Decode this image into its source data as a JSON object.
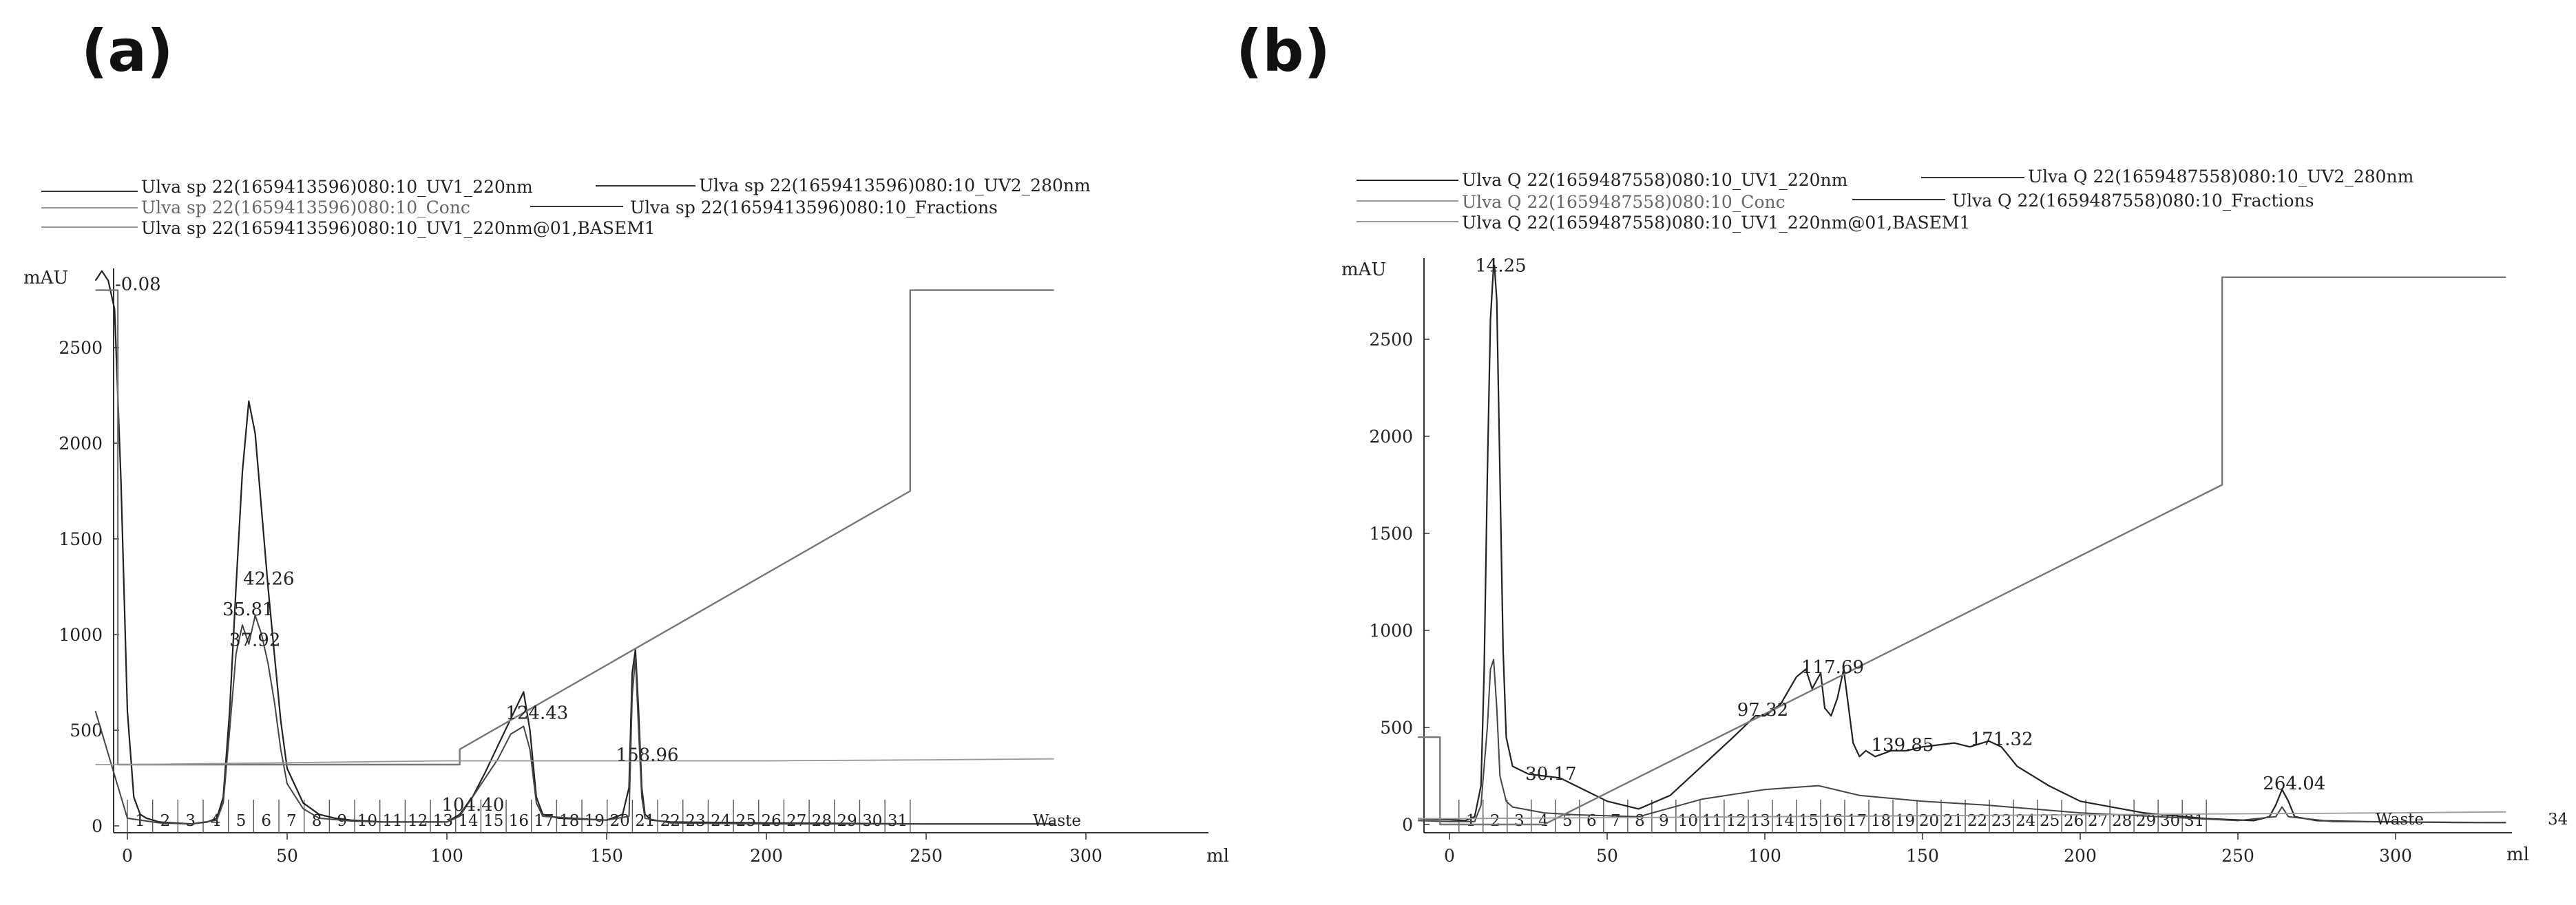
{
  "panels": [
    {
      "label": "(a)",
      "legend": [
        "Ulva sp 22(1659413596)080:10_UV1_220nm",
        "Ulva sp 22(1659413596)080:10_UV2_280nm",
        "Ulva sp 22(1659413596)080:10_Conc",
        "Ulva sp 22(1659413596)080:10_Fractions",
        "Ulva sp 22(1659413596)080:10_UV1_220nm@01,BASEM1"
      ],
      "ylabel": "mAU",
      "xlabel": "ml",
      "waste_label": "Waste",
      "right_edge_label": "",
      "fractions": [
        "1",
        "2",
        "3",
        "4",
        "5",
        "6",
        "7",
        "8",
        "9",
        "10",
        "11",
        "12",
        "13",
        "14",
        "15",
        "16",
        "17",
        "18",
        "19",
        "20",
        "21",
        "22",
        "23",
        "24",
        "25",
        "26",
        "27",
        "28",
        "29",
        "30",
        "31"
      ],
      "peak_labels": [
        {
          "text": "-0.08",
          "x": -0.08,
          "y": 2800
        },
        {
          "text": "42.26",
          "x": 42.26,
          "y": 1260
        },
        {
          "text": "35.81",
          "x": 35.81,
          "y": 1100
        },
        {
          "text": "37.92",
          "x": 37.92,
          "y": 940
        },
        {
          "text": "104.40",
          "x": 104.4,
          "y": 80
        },
        {
          "text": "124.43",
          "x": 124.43,
          "y": 560
        },
        {
          "text": "158.96",
          "x": 158.96,
          "y": 340
        }
      ]
    },
    {
      "label": "(b)",
      "legend": [
        "Ulva Q 22(1659487558)080:10_UV1_220nm",
        "Ulva Q 22(1659487558)080:10_UV2_280nm",
        "Ulva Q 22(1659487558)080:10_Conc",
        "Ulva Q 22(1659487558)080:10_Fractions",
        "Ulva Q 22(1659487558)080:10_UV1_220nm@01,BASEM1"
      ],
      "ylabel": "mAU",
      "xlabel": "ml",
      "waste_label": "Waste",
      "right_edge_label": "34",
      "fractions": [
        "1",
        "2",
        "3",
        "4",
        "5",
        "6",
        "7",
        "8",
        "9",
        "10",
        "11",
        "12",
        "13",
        "14",
        "15",
        "16",
        "17",
        "18",
        "19",
        "20",
        "21",
        "22",
        "23",
        "24",
        "25",
        "26",
        "27",
        "28",
        "29",
        "30",
        "31"
      ],
      "peak_labels": [
        {
          "text": "14.25",
          "x": 14.25,
          "y": 2850
        },
        {
          "text": "30.17",
          "x": 30.17,
          "y": 230
        },
        {
          "text": "97.32",
          "x": 97.32,
          "y": 560
        },
        {
          "text": "117.69",
          "x": 117.69,
          "y": 780
        },
        {
          "text": "139.85",
          "x": 139.85,
          "y": 380
        },
        {
          "text": "171.32",
          "x": 171.32,
          "y": 410
        },
        {
          "text": "264.04",
          "x": 264.04,
          "y": 180
        }
      ]
    }
  ],
  "chart_data": [
    {
      "type": "line",
      "title": "",
      "xlabel": "ml",
      "ylabel": "mAU",
      "xlim": [
        -10,
        290
      ],
      "ylim": [
        0,
        2900
      ],
      "xticks": [
        0,
        50,
        100,
        150,
        200,
        250,
        300
      ],
      "yticks": [
        0,
        500,
        1000,
        1500,
        2000,
        2500
      ],
      "grid": false,
      "legend_position": "top",
      "series": [
        {
          "name": "Ulva sp 22(1659413596)080:10_UV1_220nm",
          "x": [
            -10,
            -8,
            -6,
            -4,
            -2,
            0,
            2,
            4,
            6,
            8,
            10,
            15,
            20,
            25,
            28,
            30,
            32,
            34,
            36,
            38,
            40,
            42,
            44,
            46,
            48,
            50,
            55,
            60,
            65,
            70,
            80,
            90,
            100,
            104,
            108,
            112,
            116,
            120,
            124,
            126,
            128,
            130,
            135,
            150,
            155,
            157,
            158,
            159,
            160,
            161,
            162,
            164,
            170,
            200,
            250,
            290
          ],
          "y": [
            2850,
            2900,
            2850,
            2700,
            1800,
            600,
            150,
            60,
            40,
            30,
            20,
            15,
            10,
            20,
            40,
            150,
            600,
            1250,
            1850,
            2220,
            2050,
            1650,
            1250,
            900,
            550,
            300,
            120,
            60,
            40,
            30,
            20,
            20,
            20,
            60,
            150,
            280,
            420,
            560,
            700,
            500,
            150,
            60,
            40,
            30,
            60,
            200,
            800,
            920,
            600,
            200,
            60,
            30,
            20,
            15,
            10,
            10
          ]
        },
        {
          "name": "Ulva sp 22(1659413596)080:10_UV2_280nm",
          "x": [
            -10,
            0,
            10,
            20,
            28,
            30,
            32,
            34,
            36,
            38,
            40,
            42,
            44,
            46,
            48,
            50,
            55,
            60,
            70,
            80,
            100,
            104,
            110,
            116,
            120,
            124,
            126,
            128,
            130,
            150,
            157,
            158,
            159,
            160,
            161,
            162,
            170,
            200,
            250,
            290
          ],
          "y": [
            600,
            40,
            15,
            10,
            30,
            120,
            500,
            900,
            1050,
            950,
            1100,
            1000,
            850,
            650,
            400,
            220,
            90,
            40,
            25,
            20,
            20,
            50,
            200,
            350,
            480,
            520,
            400,
            120,
            50,
            30,
            50,
            680,
            880,
            500,
            150,
            40,
            15,
            10,
            10,
            10
          ]
        },
        {
          "name": "Ulva sp 22(1659413596)080:10_Conc",
          "x": [
            -10,
            -3,
            -3,
            0,
            50,
            104,
            104,
            245,
            245,
            290
          ],
          "y": [
            2800,
            2800,
            320,
            320,
            320,
            320,
            400,
            1750,
            2800,
            2800
          ]
        },
        {
          "name": "Ulva sp 22(1659413596)080:10_UV1_220nm@01,BASEM1",
          "x": [
            -10,
            0,
            50,
            100,
            150,
            200,
            250,
            290
          ],
          "y": [
            320,
            320,
            330,
            340,
            340,
            340,
            345,
            350
          ]
        }
      ],
      "fractions": [
        "1",
        "2",
        "3",
        "4",
        "5",
        "6",
        "7",
        "8",
        "9",
        "10",
        "11",
        "12",
        "13",
        "14",
        "15",
        "16",
        "17",
        "18",
        "19",
        "20",
        "21",
        "22",
        "23",
        "24",
        "25",
        "26",
        "27",
        "28",
        "29",
        "30",
        "31"
      ],
      "fraction_range_ml": [
        0,
        245
      ],
      "annotations": [
        "-0.08",
        "42.26",
        "35.81",
        "37.92",
        "104.40",
        "124.43",
        "158.96",
        "Waste"
      ]
    },
    {
      "type": "line",
      "title": "",
      "xlabel": "ml",
      "ylabel": "mAU",
      "xlim": [
        -10,
        335
      ],
      "ylim": [
        0,
        2900
      ],
      "xticks": [
        0,
        50,
        100,
        150,
        200,
        250,
        300
      ],
      "yticks": [
        0,
        500,
        1000,
        1500,
        2000,
        2500
      ],
      "grid": false,
      "legend_position": "top",
      "series": [
        {
          "name": "Ulva Q 22(1659487558)080:10_UV1_220nm",
          "x": [
            -10,
            0,
            5,
            8,
            10,
            11,
            12,
            13,
            14,
            14.25,
            15,
            16,
            17,
            18,
            20,
            25,
            30,
            35,
            40,
            50,
            60,
            70,
            80,
            90,
            97,
            100,
            105,
            110,
            113,
            115,
            117.7,
            119,
            121,
            123,
            125,
            128,
            130,
            132,
            135,
            140,
            145,
            150,
            160,
            165,
            171,
            175,
            180,
            190,
            200,
            220,
            240,
            255,
            260,
            262,
            264,
            266,
            268,
            275,
            290,
            320,
            335
          ],
          "y": [
            30,
            25,
            20,
            40,
            200,
            800,
            1800,
            2600,
            2880,
            2880,
            2700,
            1800,
            900,
            450,
            300,
            260,
            250,
            240,
            200,
            120,
            80,
            150,
            300,
            450,
            560,
            560,
            620,
            760,
            800,
            700,
            780,
            600,
            560,
            650,
            800,
            420,
            350,
            380,
            350,
            380,
            380,
            400,
            420,
            400,
            430,
            400,
            300,
            200,
            120,
            60,
            30,
            20,
            40,
            100,
            180,
            120,
            40,
            20,
            15,
            10,
            10
          ]
        },
        {
          "name": "Ulva Q 22(1659487558)080:10_UV2_280nm",
          "x": [
            -10,
            0,
            8,
            10,
            12,
            13,
            14,
            15,
            16,
            18,
            20,
            30,
            40,
            60,
            80,
            100,
            117,
            130,
            150,
            170,
            200,
            250,
            262,
            264,
            266,
            280,
            335
          ],
          "y": [
            20,
            15,
            15,
            100,
            500,
            800,
            850,
            600,
            250,
            120,
            90,
            60,
            50,
            40,
            130,
            180,
            200,
            150,
            120,
            100,
            60,
            20,
            40,
            90,
            40,
            15,
            10
          ]
        },
        {
          "name": "Ulva Q 22(1659487558)080:10_Conc",
          "x": [
            -10,
            -3,
            -3,
            30,
            245,
            245,
            335
          ],
          "y": [
            450,
            450,
            0,
            0,
            1750,
            2820,
            2820
          ]
        },
        {
          "name": "Ulva Q 22(1659487558)080:10_UV1_220nm@01,BASEM1",
          "x": [
            -10,
            0,
            50,
            100,
            150,
            200,
            250,
            300,
            335
          ],
          "y": [
            30,
            30,
            35,
            40,
            45,
            50,
            55,
            60,
            65
          ]
        }
      ],
      "fractions": [
        "1",
        "2",
        "3",
        "4",
        "5",
        "6",
        "7",
        "8",
        "9",
        "10",
        "11",
        "12",
        "13",
        "14",
        "15",
        "16",
        "17",
        "18",
        "19",
        "20",
        "21",
        "22",
        "23",
        "24",
        "25",
        "26",
        "27",
        "28",
        "29",
        "30",
        "31"
      ],
      "fraction_range_ml": [
        3,
        240
      ],
      "annotations": [
        "14.25",
        "30.17",
        "97.32",
        "117.69",
        "139.85",
        "171.32",
        "264.04",
        "Waste",
        "34"
      ]
    }
  ]
}
